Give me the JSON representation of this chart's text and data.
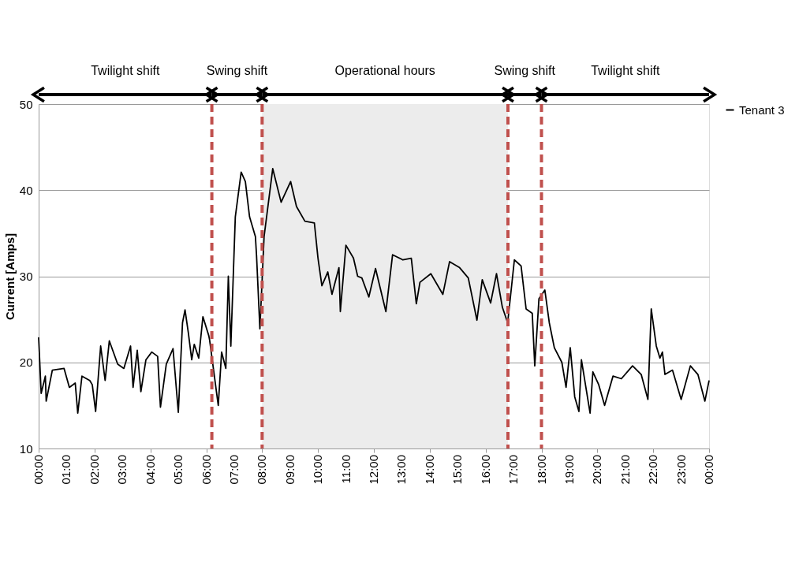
{
  "chart_data": {
    "type": "line",
    "ylabel": "Current [Amps]",
    "xlim": [
      0,
      24
    ],
    "ylim": [
      10,
      50
    ],
    "yticks": [
      10,
      20,
      30,
      40,
      50
    ],
    "xticks": [
      {
        "value": 0,
        "label": "00:00"
      },
      {
        "value": 1,
        "label": "01:00"
      },
      {
        "value": 2,
        "label": "02:00"
      },
      {
        "value": 3,
        "label": "03:00"
      },
      {
        "value": 4,
        "label": "04:00"
      },
      {
        "value": 5,
        "label": "05:00"
      },
      {
        "value": 6,
        "label": "06:00"
      },
      {
        "value": 7,
        "label": "07:00"
      },
      {
        "value": 8,
        "label": "08:00"
      },
      {
        "value": 9,
        "label": "09:00"
      },
      {
        "value": 10,
        "label": "10:00"
      },
      {
        "value": 11,
        "label": "11:00"
      },
      {
        "value": 12,
        "label": "12:00"
      },
      {
        "value": 13,
        "label": "13:00"
      },
      {
        "value": 14,
        "label": "14:00"
      },
      {
        "value": 15,
        "label": "15:00"
      },
      {
        "value": 16,
        "label": "16:00"
      },
      {
        "value": 17,
        "label": "17:00"
      },
      {
        "value": 18,
        "label": "18:00"
      },
      {
        "value": 19,
        "label": "19:00"
      },
      {
        "value": 20,
        "label": "20:00"
      },
      {
        "value": 21,
        "label": "21:00"
      },
      {
        "value": 22,
        "label": "22:00"
      },
      {
        "value": 23,
        "label": "23:00"
      },
      {
        "value": 24,
        "label": "00:00"
      }
    ],
    "grid": "y",
    "legend": "right",
    "x": [
      0,
      0.09,
      0.24,
      0.27,
      0.49,
      0.91,
      1.1,
      1.31,
      1.4,
      1.55,
      1.83,
      1.92,
      2.04,
      2.22,
      2.38,
      2.53,
      2.83,
      3.05,
      3.29,
      3.38,
      3.53,
      3.66,
      3.84,
      4.05,
      4.26,
      4.36,
      4.57,
      4.81,
      5.0,
      5.15,
      5.24,
      5.36,
      5.48,
      5.57,
      5.73,
      5.88,
      6.09,
      6.12,
      6.43,
      6.55,
      6.7,
      6.79,
      6.88,
      7.04,
      7.25,
      7.4,
      7.55,
      7.76,
      7.8,
      7.92,
      8.07,
      8.38,
      8.68,
      9.02,
      9.23,
      9.53,
      9.87,
      10.0,
      10.14,
      10.35,
      10.5,
      10.75,
      10.8,
      11.0,
      11.27,
      11.42,
      11.57,
      11.82,
      12.06,
      12.43,
      12.67,
      13.04,
      13.34,
      13.52,
      13.65,
      14.04,
      14.47,
      14.71,
      15.07,
      15.38,
      15.69,
      15.88,
      16.18,
      16.39,
      16.6,
      16.79,
      17.03,
      17.27,
      17.45,
      17.67,
      17.76,
      17.91,
      18.12,
      18.28,
      18.46,
      18.73,
      18.88,
      19.03,
      19.19,
      19.34,
      19.43,
      19.59,
      19.74,
      19.84,
      20.05,
      20.26,
      20.56,
      20.86,
      21.26,
      21.57,
      21.81,
      21.93,
      22.11,
      22.24,
      22.33,
      22.42,
      22.69,
      23.0,
      23.33,
      23.6,
      23.85,
      24.0
    ],
    "series": [
      {
        "name": "Tenant 3",
        "color": "#000000",
        "values": [
          22.9,
          16.4,
          18.4,
          15.5,
          19.1,
          19.3,
          17.1,
          17.6,
          14.1,
          18.4,
          17.9,
          17.4,
          14.3,
          21.9,
          17.9,
          22.5,
          19.8,
          19.3,
          21.9,
          17.1,
          21.4,
          16.6,
          20.3,
          21.2,
          20.7,
          14.8,
          19.8,
          21.6,
          14.2,
          24.6,
          26.1,
          23.4,
          20.3,
          22.1,
          20.5,
          25.3,
          23.1,
          22.6,
          15.0,
          21.2,
          19.3,
          30.0,
          21.9,
          36.9,
          42.1,
          41.0,
          36.9,
          34.6,
          32.4,
          23.9,
          34.6,
          42.5,
          38.6,
          41.0,
          38.1,
          36.4,
          36.2,
          32.1,
          28.9,
          30.5,
          27.9,
          31.0,
          25.9,
          33.6,
          32.1,
          30.0,
          29.8,
          27.6,
          30.9,
          25.9,
          32.5,
          31.9,
          32.1,
          26.8,
          29.3,
          30.3,
          27.9,
          31.7,
          31.0,
          29.8,
          24.9,
          29.6,
          26.9,
          30.3,
          26.4,
          24.6,
          31.9,
          31.2,
          26.2,
          25.7,
          19.6,
          27.4,
          28.4,
          24.6,
          21.7,
          20.0,
          17.1,
          21.7,
          16.0,
          14.3,
          20.3,
          17.1,
          14.1,
          18.9,
          17.4,
          15.0,
          18.4,
          18.1,
          19.6,
          18.6,
          15.7,
          26.2,
          21.9,
          20.5,
          21.2,
          18.6,
          19.1,
          15.7,
          19.6,
          18.6,
          15.5,
          17.9
        ]
      }
    ],
    "ref_lines": [
      {
        "axis": "x",
        "value": 6.2,
        "color": "#c0504d",
        "line_style": "dashed"
      },
      {
        "axis": "x",
        "value": 8.0,
        "color": "#c0504d",
        "line_style": "dashed"
      },
      {
        "axis": "x",
        "value": 16.8,
        "color": "#c0504d",
        "line_style": "dashed"
      },
      {
        "axis": "x",
        "value": 18.0,
        "color": "#c0504d",
        "line_style": "dashed"
      }
    ],
    "bands": [
      {
        "axis": "x",
        "from": 8.0,
        "to": 16.8,
        "color": "#ececec"
      }
    ],
    "annotations": [
      "Twilight shift",
      "Swing shift",
      "Operational hours",
      "Swing shift",
      "Twilight shift"
    ]
  }
}
